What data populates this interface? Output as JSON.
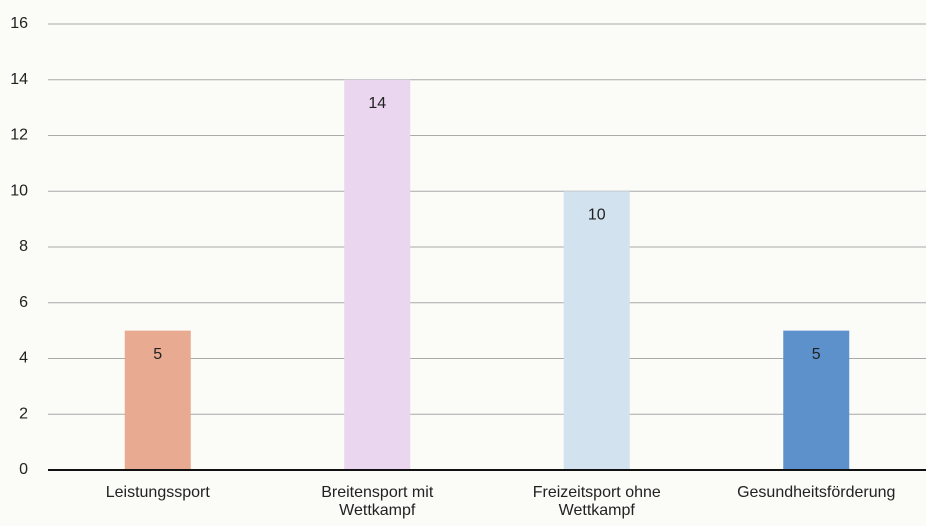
{
  "chart_data": {
    "type": "bar",
    "categories": [
      "Leistungssport",
      "Breitensport mit Wettkampf",
      "Freizeitsport ohne Wettkampf",
      "Gesundheitsförderung"
    ],
    "values": [
      5,
      14,
      10,
      5
    ],
    "colors": [
      "#e9aa92",
      "#ead6ee",
      "#d2e2ee",
      "#5d91cb"
    ],
    "ylim": [
      0,
      16
    ],
    "yticks": [
      0,
      2,
      4,
      6,
      8,
      10,
      12,
      14,
      16
    ],
    "grid": true
  }
}
